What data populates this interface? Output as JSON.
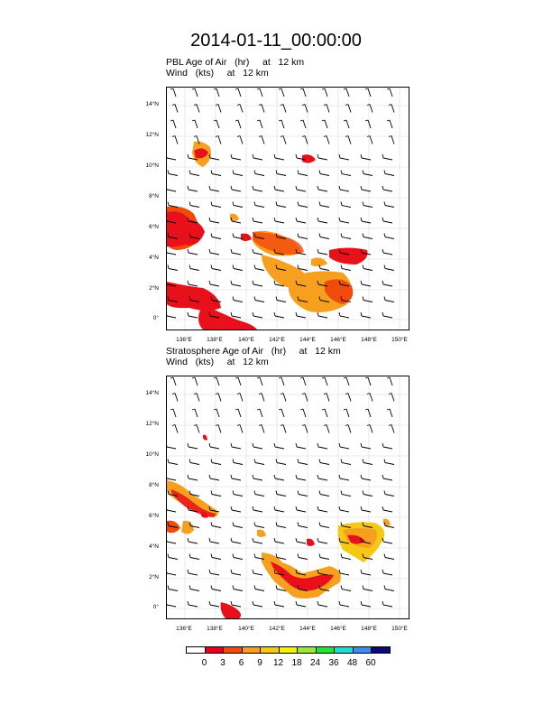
{
  "title": "2014-01-11_00:00:00",
  "panels": [
    {
      "title_line1": "PBL Age of Air   (hr)     at   12 km",
      "title_line2": "Wind   (kts)     at   12 km"
    },
    {
      "title_line1": "Stratosphere Age of Air   (hr)     at   12 km",
      "title_line2": "Wind   (kts)     at   12 km"
    }
  ],
  "lat_labels": [
    "14°N",
    "12°N",
    "10°N",
    "8°N",
    "6°N",
    "4°N",
    "2°N",
    "0°"
  ],
  "lon_labels": [
    "136°E",
    "138°E",
    "140°E",
    "142°E",
    "144°E",
    "146°E",
    "148°E",
    "150°E"
  ],
  "colorbar": {
    "labels": [
      "0",
      "3",
      "6",
      "9",
      "12",
      "18",
      "24",
      "36",
      "48",
      "60"
    ],
    "colors": [
      "#ffffff",
      "#e8001a",
      "#f04a0c",
      "#f7a020",
      "#f5c816",
      "#f2f20a",
      "#9be63c",
      "#1ee632",
      "#1edcd2",
      "#3c8cf0",
      "#0a0a78"
    ]
  },
  "colors": {
    "red": "#e8101a",
    "orange": "#f04a0c",
    "amber": "#f7a020",
    "yellow": "#f5c816",
    "grid": "#d8d8d8"
  }
}
